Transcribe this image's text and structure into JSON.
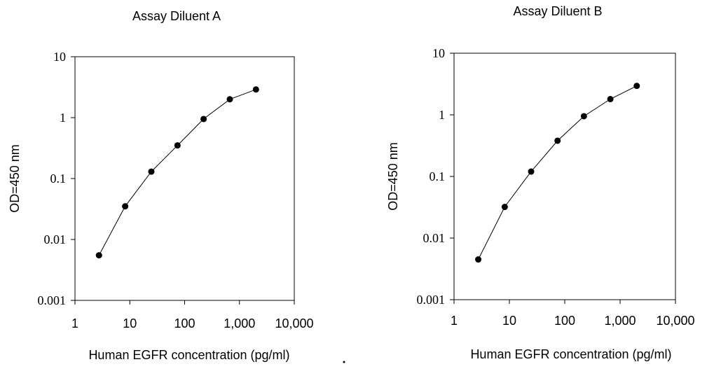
{
  "chart_data": [
    {
      "type": "line",
      "title": "Assay Diluent A",
      "xlabel": "Human EGFR concentration (pg/ml)",
      "ylabel": "OD=450 nm",
      "xscale": "log",
      "yscale": "log",
      "xlim": [
        1,
        10000
      ],
      "ylim": [
        0.001,
        10
      ],
      "xticks": [
        "1",
        "10",
        "100",
        "1,000",
        "10,000"
      ],
      "yticks": [
        "10",
        "1",
        "0.1",
        "0.01",
        "0.001"
      ],
      "grid": false,
      "series": [
        {
          "x": [
            2.74,
            8.23,
            24.7,
            74.1,
            222,
            667,
            2000
          ],
          "y": [
            0.0055,
            0.035,
            0.13,
            0.35,
            0.95,
            2.0,
            2.9
          ]
        }
      ]
    },
    {
      "type": "line",
      "title": "Assay Diluent B",
      "xlabel": "Human EGFR concentration (pg/ml)",
      "ylabel": "OD=450 nm",
      "xscale": "log",
      "yscale": "log",
      "xlim": [
        1,
        10000
      ],
      "ylim": [
        0.001,
        10
      ],
      "xticks": [
        "1",
        "10",
        "100",
        "1,000",
        "10,000"
      ],
      "yticks": [
        "10",
        "1",
        "0.1",
        "0.01",
        "0.001"
      ],
      "grid": false,
      "series": [
        {
          "x": [
            2.74,
            8.23,
            24.7,
            74.1,
            222,
            667,
            2000
          ],
          "y": [
            0.0045,
            0.032,
            0.12,
            0.38,
            0.95,
            1.8,
            2.95
          ]
        }
      ]
    }
  ]
}
